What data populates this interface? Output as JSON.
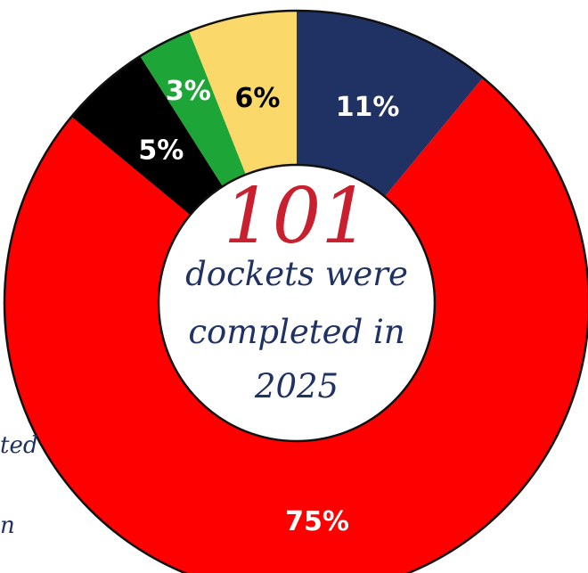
{
  "chart_data": {
    "type": "pie",
    "style": "donut",
    "categories": [
      "",
      "",
      "",
      "",
      ""
    ],
    "values": [
      11,
      75,
      5,
      3,
      6
    ],
    "labels": [
      "11%",
      "75%",
      "5%",
      "3%",
      "6%"
    ],
    "colors": [
      "#1f3263",
      "#ff0000",
      "#000000",
      "#1ea537",
      "#fad86a"
    ],
    "label_colors": [
      "#ffffff",
      "#ffffff",
      "#ffffff",
      "#ffffff",
      "#000000"
    ],
    "legend": "none"
  },
  "center": {
    "number": "101",
    "line1": "dockets were",
    "line2": "completed in",
    "line3": "2025"
  },
  "side_fragments": [
    "ted",
    "n"
  ]
}
